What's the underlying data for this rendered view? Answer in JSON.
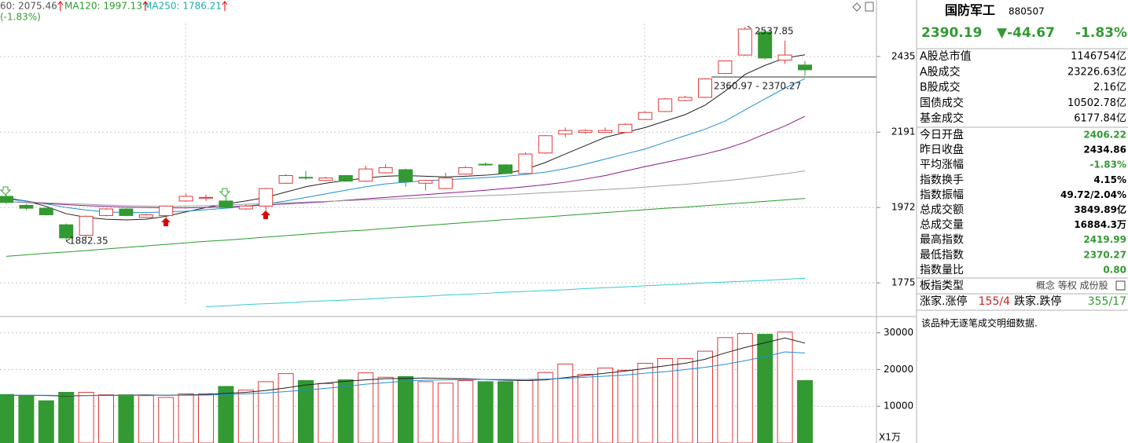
{
  "header": {
    "ma60": "60: 2075.46",
    "ma120": "MA120: 1997.13",
    "ma250": "MA250: 1786.21",
    "change": "(-1.83%)"
  },
  "chart_data": [
    {
      "type": "candlestick",
      "log_scale": true,
      "ylim": [
        1699,
        2635
      ],
      "yticks": [
        2435,
        2191,
        1972,
        1775
      ],
      "grid": true,
      "up_color": "#e03a3a",
      "down_color": "#339933",
      "open": [
        2003,
        1978,
        1970,
        1925,
        1897,
        1950,
        1968,
        1945,
        1950,
        1990,
        1998,
        1990,
        1968,
        1976,
        2040,
        2057,
        2048,
        2062,
        2046,
        2070,
        2079,
        2040,
        2025,
        2066,
        2095,
        2093,
        2068,
        2128,
        2185,
        2190,
        2190,
        2190,
        2230,
        2255,
        2290,
        2300,
        2378,
        2440,
        2520,
        2423,
        2406.22
      ],
      "high": [
        2008,
        1982,
        1973,
        1928,
        1950,
        1970,
        1970,
        1955,
        1978,
        2010,
        2008,
        2005,
        1980,
        2027,
        2066,
        2075,
        2058,
        2064,
        2090,
        2095,
        2082,
        2050,
        2070,
        2090,
        2100,
        2095,
        2130,
        2182,
        2205,
        2200,
        2205,
        2218,
        2255,
        2298,
        2305,
        2362,
        2422,
        2537.85,
        2530,
        2490,
        2419.99
      ],
      "low": [
        1982,
        1965,
        1950,
        1882.35,
        1890,
        1948,
        1948,
        1943,
        1940,
        1988,
        1990,
        1970,
        1966,
        1960,
        2038,
        2050,
        2046,
        2044,
        2044,
        2068,
        2030,
        2020,
        2023,
        2064,
        2090,
        2066,
        2066,
        2126,
        2175,
        2186,
        2188,
        2188,
        2228,
        2253,
        2288,
        2298,
        2376,
        2438,
        2425,
        2410,
        2370.27
      ],
      "close": [
        1986,
        1970,
        1952,
        1890,
        1948,
        1968,
        1950,
        1952,
        1976,
        2003,
        2000,
        1972,
        1976,
        2025,
        2062,
        2055,
        2055,
        2046,
        2081,
        2085,
        2044,
        2048,
        2055,
        2085,
        2093,
        2068,
        2125,
        2180,
        2196,
        2196,
        2196,
        2215,
        2252,
        2295,
        2300,
        2360,
        2420,
        2530,
        2430,
        2440,
        2390.19
      ],
      "series": [
        {
          "color": "#222222",
          "values": [
            1998,
            1990,
            1975,
            1955,
            1945,
            1940,
            1938,
            1940,
            1948,
            1960,
            1972,
            1982,
            1990,
            2000,
            2015,
            2030,
            2040,
            2048,
            2055,
            2060,
            2062,
            2060,
            2058,
            2060,
            2063,
            2068,
            2080,
            2100,
            2125,
            2150,
            2175,
            2190,
            2205,
            2225,
            2245,
            2275,
            2320,
            2375,
            2405,
            2430,
            2441
          ]
        },
        {
          "color": "#1f8fd6",
          "values": [
            1995,
            1990,
            1982,
            1972,
            1965,
            1960,
            1958,
            1958,
            1960,
            1962,
            1966,
            1970,
            1975,
            1982,
            1990,
            2000,
            2010,
            2020,
            2030,
            2038,
            2043,
            2047,
            2050,
            2053,
            2056,
            2060,
            2065,
            2072,
            2082,
            2095,
            2110,
            2125,
            2140,
            2160,
            2180,
            2200,
            2225,
            2260,
            2295,
            2330,
            2361
          ]
        },
        {
          "color": "#8a1a8a",
          "values": [
            1988,
            1986,
            1983,
            1980,
            1977,
            1975,
            1973,
            1972,
            1971,
            1971,
            1972,
            1974,
            1976,
            1979,
            1982,
            1985,
            1988,
            1992,
            1996,
            2000,
            2004,
            2008,
            2012,
            2016,
            2020,
            2025,
            2030,
            2036,
            2043,
            2052,
            2062,
            2075,
            2088,
            2100,
            2112,
            2125,
            2140,
            2160,
            2185,
            2210,
            2240
          ]
        },
        {
          "color": "#a0a0a0",
          "values": [
            1988,
            1987,
            1985,
            1983,
            1981,
            1979,
            1977,
            1976,
            1975,
            1976,
            1977,
            1979,
            1981,
            1983,
            1985,
            1987,
            1989,
            1991,
            1993,
            1995,
            1997,
            1999,
            2001,
            2003,
            2005,
            2007,
            2010,
            2013,
            2016,
            2019,
            2022,
            2025,
            2029,
            2033,
            2037,
            2042,
            2047,
            2053,
            2060,
            2067,
            2075.46
          ]
        },
        {
          "color": "#2a9a2a",
          "values": [
            1842,
            1846,
            1850,
            1853,
            1857,
            1861,
            1865,
            1869,
            1873,
            1877,
            1881,
            1884,
            1888,
            1892,
            1896,
            1900,
            1904,
            1908,
            1911,
            1915,
            1919,
            1923,
            1927,
            1931,
            1935,
            1939,
            1942,
            1946,
            1950,
            1954,
            1958,
            1962,
            1966,
            1970,
            1973,
            1977,
            1981,
            1985,
            1989,
            1993,
            1997.13
          ]
        },
        {
          "color": "#33cccc",
          "values": [
            null,
            null,
            null,
            null,
            null,
            null,
            null,
            null,
            null,
            null,
            1717,
            1719,
            1722,
            1724,
            1726,
            1729,
            1731,
            1733,
            1735,
            1738,
            1740,
            1742,
            1745,
            1747,
            1749,
            1752,
            1754,
            1756,
            1758,
            1761,
            1763,
            1765,
            1768,
            1770,
            1772,
            1775,
            1777,
            1779,
            1781,
            1784,
            1786.21
          ]
        }
      ],
      "annotations": [
        "2537.85",
        "1882.35",
        "2360.97 - 2370.27"
      ]
    },
    {
      "type": "bar",
      "ylim": [
        0,
        34000
      ],
      "yticks": [
        10000,
        20000,
        30000
      ],
      "unit": "X1万",
      "values": [
        13200,
        12800,
        11500,
        13800,
        13800,
        13100,
        13100,
        12900,
        12400,
        13400,
        13400,
        15400,
        14400,
        16700,
        18900,
        17000,
        16200,
        17200,
        19100,
        17900,
        18100,
        16700,
        16300,
        17000,
        16700,
        16700,
        17000,
        19200,
        21500,
        18700,
        20400,
        19800,
        21700,
        23000,
        23000,
        25000,
        28700,
        29800,
        29600,
        30200,
        17000
      ],
      "series": [
        {
          "color": "#222222",
          "values": [
            13000,
            13000,
            12900,
            12800,
            12900,
            13000,
            13000,
            13100,
            13000,
            13100,
            13200,
            13500,
            13800,
            14300,
            15000,
            15800,
            16300,
            16800,
            17200,
            17500,
            17600,
            17700,
            17600,
            17500,
            17300,
            17100,
            17000,
            17200,
            17800,
            18400,
            19000,
            19600,
            20300,
            21000,
            21700,
            22800,
            24500,
            26000,
            27300,
            28600,
            27200
          ]
        },
        {
          "color": "#1f8fd6",
          "values": [
            13000,
            13000,
            13000,
            12950,
            12900,
            12900,
            12950,
            13000,
            13000,
            13000,
            13050,
            13200,
            13400,
            13600,
            14000,
            14400,
            14900,
            15400,
            16000,
            16400,
            16900,
            17100,
            17200,
            17300,
            17300,
            17300,
            17300,
            17400,
            17600,
            17900,
            18200,
            18500,
            19000,
            19400,
            20000,
            20600,
            21400,
            22400,
            23500,
            24800,
            24500
          ]
        }
      ]
    }
  ],
  "panel": {
    "name": "国防军工",
    "code": "880507",
    "price": "2390.19",
    "change": "▼-44.67",
    "pct": "-1.83%",
    "rows_top": [
      [
        "A股总市值",
        "1146754亿"
      ],
      [
        "Α股成交",
        "23226.63亿"
      ],
      [
        "Β股成交",
        "2.16亿"
      ],
      [
        "国债成交",
        "10502.78亿"
      ],
      [
        "基金成交",
        "6177.84亿"
      ]
    ],
    "rows": [
      [
        "今日开盘",
        "2406.22",
        "green"
      ],
      [
        "昨日收盘",
        "2434.86",
        "black"
      ],
      [
        "平均涨幅",
        "-1.83%",
        "green"
      ],
      [
        "指数换手",
        "4.15%",
        "black"
      ],
      [
        "指数振幅",
        "49.72/2.04%",
        "black"
      ],
      [
        "总成交额",
        "3849.89亿",
        "black"
      ],
      [
        "总成交量",
        "16884.3万",
        "black"
      ],
      [
        "最高指数",
        "2419.99",
        "green"
      ],
      [
        "最低指数",
        "2370.27",
        "green"
      ],
      [
        "指数量比",
        "0.80",
        "green"
      ]
    ],
    "type_label": "板指类型",
    "type_value": "概念 等权 成份股",
    "up_label": "涨家.涨停",
    "up_value": "155/4",
    "down_label": "跌家.跌停",
    "down_value": "355/17",
    "note": "该品种无逐笔成交明细数据."
  }
}
